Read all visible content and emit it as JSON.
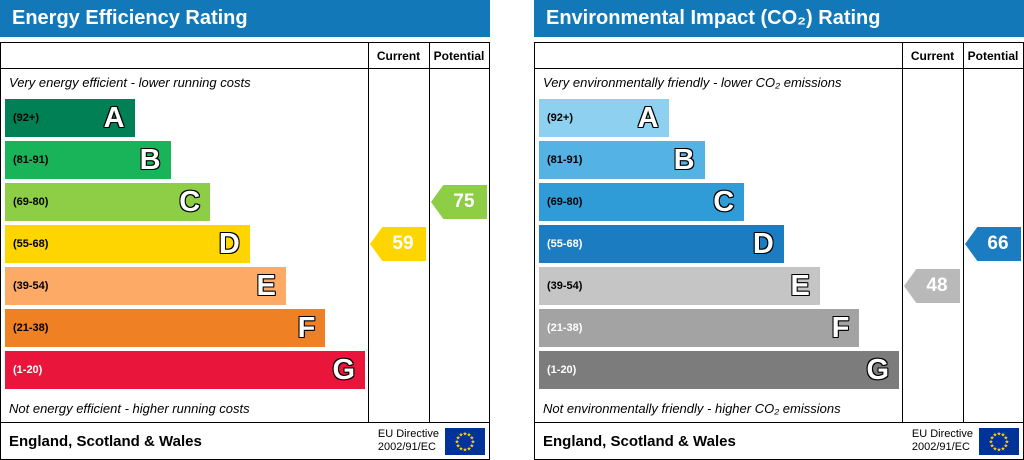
{
  "chart_data": [
    {
      "type": "bar",
      "title": "Energy Efficiency Rating",
      "categories": [
        "A (92+)",
        "B (81-91)",
        "C (69-80)",
        "D (55-68)",
        "E (39-54)",
        "F (21-38)",
        "G (1-20)"
      ],
      "band_colors": [
        "#008054",
        "#19b459",
        "#8dce46",
        "#ffd500",
        "#fcaa65",
        "#ef8023",
        "#e9153b"
      ],
      "series": [
        {
          "name": "Current",
          "value": 59,
          "band": "D"
        },
        {
          "name": "Potential",
          "value": 75,
          "band": "C"
        }
      ],
      "scale": [
        1,
        100
      ],
      "top_note": "Very energy efficient - lower running costs",
      "bottom_note": "Not energy efficient - higher running costs",
      "region": "England, Scotland & Wales",
      "directive": "EU Directive 2002/91/EC"
    },
    {
      "type": "bar",
      "title": "Environmental Impact (CO₂) Rating",
      "categories": [
        "A (92+)",
        "B (81-91)",
        "C (69-80)",
        "D (55-68)",
        "E (39-54)",
        "F (21-38)",
        "G (1-20)"
      ],
      "band_colors": [
        "#8ed0ef",
        "#54b2e4",
        "#2f9cd8",
        "#1b7cc2",
        "#c5c5c5",
        "#a3a3a3",
        "#7c7c7c"
      ],
      "series": [
        {
          "name": "Current",
          "value": 48,
          "band": "E"
        },
        {
          "name": "Potential",
          "value": 66,
          "band": "D"
        }
      ],
      "scale": [
        1,
        100
      ],
      "top_note": "Very environmentally friendly - lower CO₂ emissions",
      "bottom_note": "Not environmentally friendly - higher CO₂ emissions",
      "region": "England, Scotland & Wales",
      "directive": "EU Directive 2002/91/EC"
    }
  ],
  "colors": {
    "header_bg": "#1278b8",
    "header_text": "#ffffff",
    "border": "#000000",
    "eu_flag_bg": "#003399",
    "eu_flag_stars": "#ffcc00"
  },
  "panels": [
    {
      "title": "Energy Efficiency Rating",
      "col_current": "Current",
      "col_potential": "Potential",
      "top_note": "Very energy efficient - lower running costs",
      "bottom_note": "Not energy efficient - higher running costs",
      "bands": [
        {
          "range": "(92+)",
          "letter": "A",
          "color": "#008054",
          "width": "36%",
          "range_color": "#000000"
        },
        {
          "range": "(81-91)",
          "letter": "B",
          "color": "#19b459",
          "width": "46%",
          "range_color": "#000000"
        },
        {
          "range": "(69-80)",
          "letter": "C",
          "color": "#8dce46",
          "width": "57%",
          "range_color": "#000000"
        },
        {
          "range": "(55-68)",
          "letter": "D",
          "color": "#ffd500",
          "width": "68%",
          "range_color": "#000000"
        },
        {
          "range": "(39-54)",
          "letter": "E",
          "color": "#fcaa65",
          "width": "78%",
          "range_color": "#000000"
        },
        {
          "range": "(21-38)",
          "letter": "F",
          "color": "#ef8023",
          "width": "89%",
          "range_color": "#000000"
        },
        {
          "range": "(1-20)",
          "letter": "G",
          "color": "#e9153b",
          "width": "100%",
          "range_color": "#ffffff"
        }
      ],
      "current_marker": {
        "value": "59",
        "color": "#ffd500",
        "row": 3
      },
      "potential_marker": {
        "value": "75",
        "color": "#8dce46",
        "row": 2
      },
      "footer_region": "England, Scotland & Wales",
      "footer_directive_1": "EU Directive",
      "footer_directive_2": "2002/91/EC"
    },
    {
      "title": "Environmental Impact (CO₂) Rating",
      "col_current": "Current",
      "col_potential": "Potential",
      "top_note": "Very environmentally friendly - lower CO₂ emissions",
      "bottom_note": "Not environmentally friendly - higher CO₂ emissions",
      "bands": [
        {
          "range": "(92+)",
          "letter": "A",
          "color": "#8ed0ef",
          "width": "36%",
          "range_color": "#000000"
        },
        {
          "range": "(81-91)",
          "letter": "B",
          "color": "#54b2e4",
          "width": "46%",
          "range_color": "#000000"
        },
        {
          "range": "(69-80)",
          "letter": "C",
          "color": "#2f9cd8",
          "width": "57%",
          "range_color": "#000000"
        },
        {
          "range": "(55-68)",
          "letter": "D",
          "color": "#1b7cc2",
          "width": "68%",
          "range_color": "#ffffff"
        },
        {
          "range": "(39-54)",
          "letter": "E",
          "color": "#c5c5c5",
          "width": "78%",
          "range_color": "#000000"
        },
        {
          "range": "(21-38)",
          "letter": "F",
          "color": "#a3a3a3",
          "width": "89%",
          "range_color": "#ffffff"
        },
        {
          "range": "(1-20)",
          "letter": "G",
          "color": "#7c7c7c",
          "width": "100%",
          "range_color": "#ffffff"
        }
      ],
      "current_marker": {
        "value": "48",
        "color": "#b9b9b9",
        "row": 4
      },
      "potential_marker": {
        "value": "66",
        "color": "#1b7cc2",
        "row": 3
      },
      "footer_region": "England, Scotland & Wales",
      "footer_directive_1": "EU Directive",
      "footer_directive_2": "2002/91/EC"
    }
  ]
}
